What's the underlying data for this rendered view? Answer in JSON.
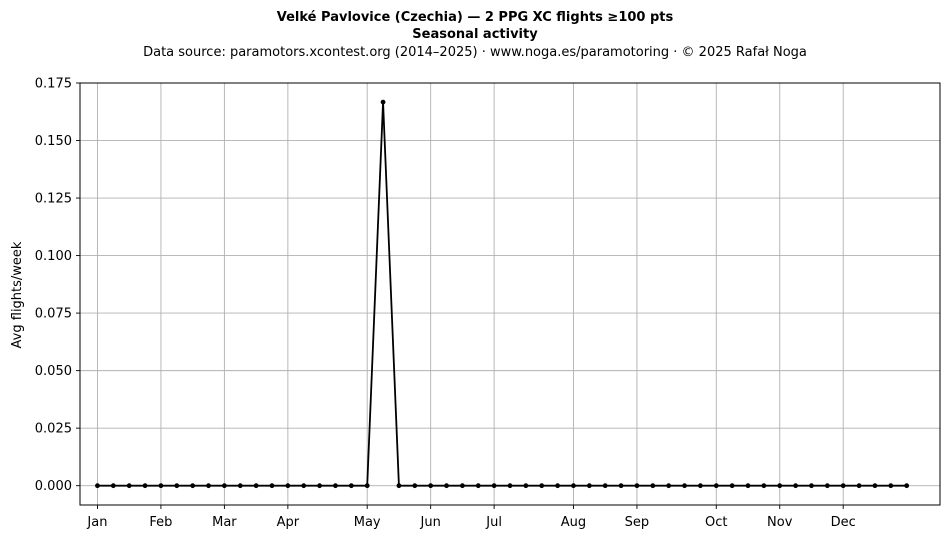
{
  "chart_data": {
    "type": "line",
    "title": "Velké Pavlovice (Czechia)  —  2 PPG XC flights ≥100 pts",
    "subtitle": "Seasonal activity",
    "source_note": "Data source: paramotors.xcontest.org (2014–2025)  ·  www.noga.es/paramotoring  ·  © 2025 Rafał Noga",
    "xlabel": "",
    "ylabel": "Avg flights/week",
    "x_unit": "week of year",
    "xlim": [
      -1.1,
      53.1
    ],
    "ylim": [
      -0.0084,
      0.175
    ],
    "x_ticks": [
      {
        "label": "Jan",
        "week": 0
      },
      {
        "label": "Feb",
        "week": 4
      },
      {
        "label": "Mar",
        "week": 8
      },
      {
        "label": "Apr",
        "week": 12
      },
      {
        "label": "May",
        "week": 17
      },
      {
        "label": "Jun",
        "week": 21
      },
      {
        "label": "Jul",
        "week": 25
      },
      {
        "label": "Aug",
        "week": 30
      },
      {
        "label": "Sep",
        "week": 34
      },
      {
        "label": "Oct",
        "week": 39
      },
      {
        "label": "Nov",
        "week": 43
      },
      {
        "label": "Dec",
        "week": 47
      }
    ],
    "y_ticks": [
      "0.000",
      "0.025",
      "0.050",
      "0.075",
      "0.100",
      "0.125",
      "0.150",
      "0.175"
    ],
    "grid": true,
    "legend": "none",
    "line_color": "#000000",
    "grid_color": "#b0b0b0",
    "series": [
      {
        "x": [
          0,
          1,
          2,
          3,
          4,
          5,
          6,
          7,
          8,
          9,
          10,
          11,
          12,
          13,
          14,
          15,
          16,
          17,
          18,
          19,
          20,
          21,
          22,
          23,
          24,
          25,
          26,
          27,
          28,
          29,
          30,
          31,
          32,
          33,
          34,
          35,
          36,
          37,
          38,
          39,
          40,
          41,
          42,
          43,
          44,
          45,
          46,
          47,
          48,
          49,
          50,
          51
        ],
        "values": [
          0,
          0,
          0,
          0,
          0,
          0,
          0,
          0,
          0,
          0,
          0,
          0,
          0,
          0,
          0,
          0,
          0,
          0,
          0.1667,
          0,
          0,
          0,
          0,
          0,
          0,
          0,
          0,
          0,
          0,
          0,
          0,
          0,
          0,
          0,
          0,
          0,
          0,
          0,
          0,
          0,
          0,
          0,
          0,
          0,
          0,
          0,
          0,
          0,
          0,
          0,
          0,
          0
        ]
      }
    ]
  }
}
